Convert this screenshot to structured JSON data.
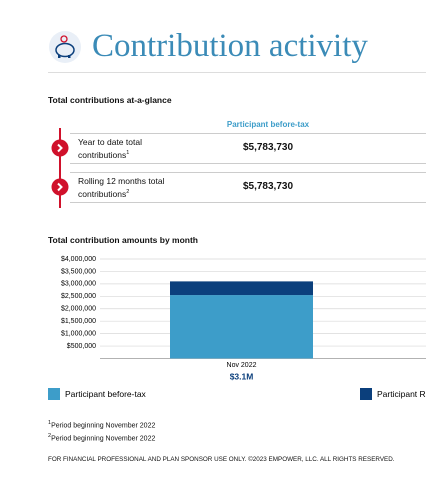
{
  "header": {
    "title": "Contribution activity"
  },
  "glance": {
    "title": "Total contributions at-a-glance",
    "column": "Participant before-tax",
    "rows": [
      {
        "label": "Year to date total contributions",
        "sup": "1",
        "value": "$5,783,730"
      },
      {
        "label": "Rolling 12 months total contributions",
        "sup": "2",
        "value": "$5,783,730"
      }
    ]
  },
  "chart_data": {
    "type": "stacked_bar",
    "title": "Total contribution amounts by month",
    "categories": [
      "Nov 2022"
    ],
    "total_labels": [
      "$3.1M"
    ],
    "series": [
      {
        "name": "Participant before-tax",
        "color": "#3d9dc9",
        "values": [
          2550000
        ]
      },
      {
        "name": "Participant R",
        "color": "#0b3f7c",
        "values": [
          550000
        ]
      }
    ],
    "ylim": [
      0,
      4000000
    ],
    "yticks": [
      {
        "value": 500000,
        "label": "$500,000"
      },
      {
        "value": 1000000,
        "label": "$1,000,000"
      },
      {
        "value": 1500000,
        "label": "$1,500,000"
      },
      {
        "value": 2000000,
        "label": "$2,000,000"
      },
      {
        "value": 2500000,
        "label": "$2,500,000"
      },
      {
        "value": 3000000,
        "label": "$3,000,000"
      },
      {
        "value": 3500000,
        "label": "$3,500,000"
      },
      {
        "value": 4000000,
        "label": "$4,000,000"
      }
    ],
    "grid": true
  },
  "footnotes": [
    {
      "sup": "1",
      "text": "Period beginning November 2022"
    },
    {
      "sup": "2",
      "text": "Period beginning November 2022"
    }
  ],
  "footer": "FOR FINANCIAL PROFESSIONAL AND PLAN SPONSOR USE ONLY. ©2023 EMPOWER, LLC. ALL RIGHTS RESERVED."
}
